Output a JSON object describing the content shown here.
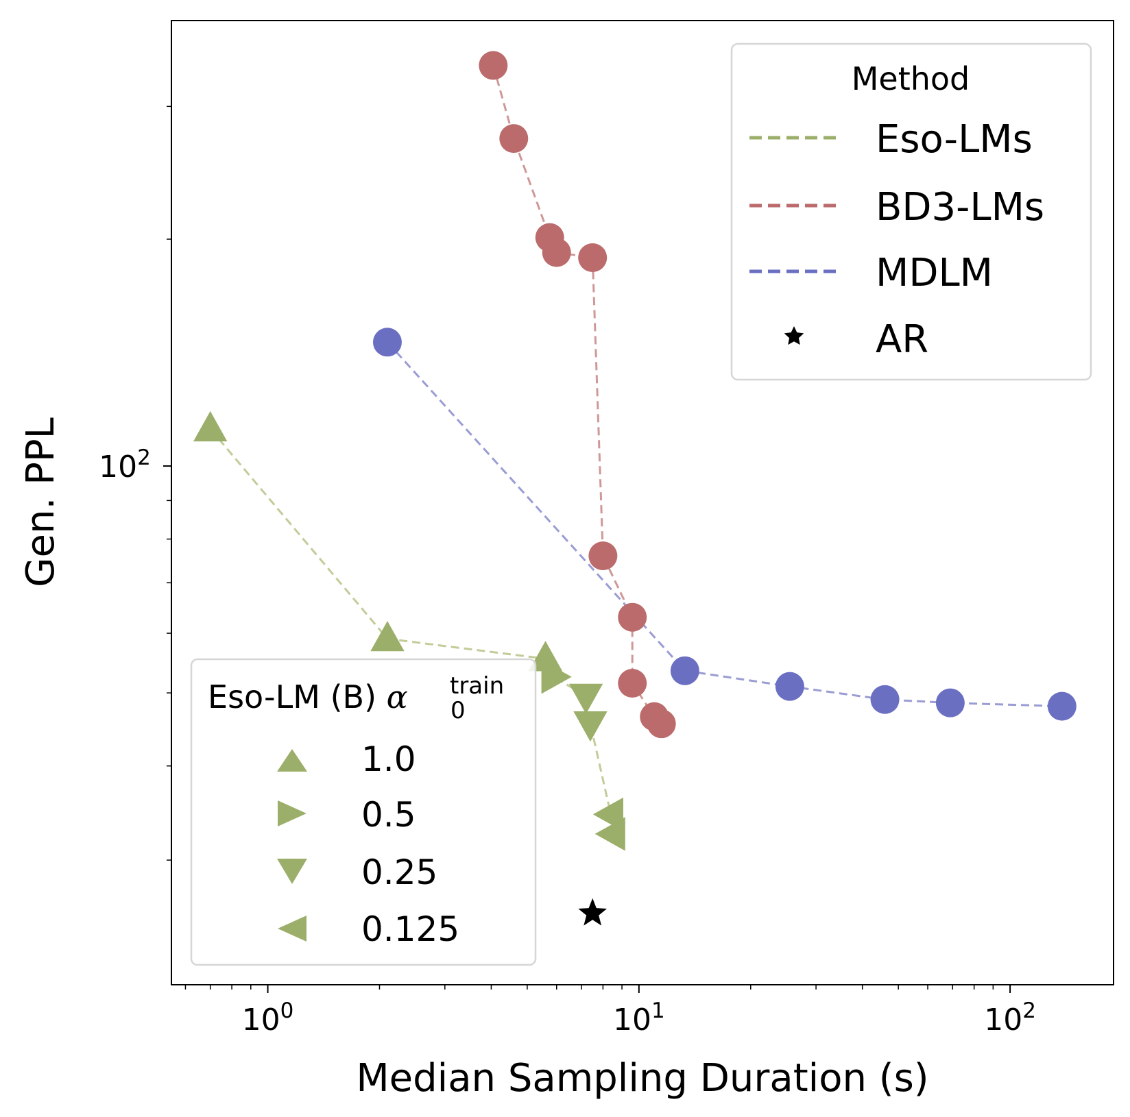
{
  "chart_data": {
    "type": "scatter",
    "xscale": "log",
    "yscale": "log",
    "xlabel": "Median Sampling Duration (s)",
    "ylabel": "Gen. PPL",
    "xlim": [
      0.55,
      190
    ],
    "ylim": [
      20.5,
      390
    ],
    "x_ticks": [
      {
        "value": 1,
        "base": "10",
        "exp": "0"
      },
      {
        "value": 10,
        "base": "10",
        "exp": "1"
      },
      {
        "value": 100,
        "base": "10",
        "exp": "2"
      }
    ],
    "y_ticks": [
      {
        "value": 100,
        "base": "10",
        "exp": "2"
      }
    ],
    "colors": {
      "eso": "#9caf6a",
      "bd3": "#bb6b6b",
      "mdlm": "#6b6fc2",
      "ar": "#000000"
    },
    "series": [
      {
        "name": "Eso-LMs",
        "key": "eso",
        "line_color": "#c2cc98",
        "marker_color": "#9caf6a",
        "points": [
          {
            "x": 0.7,
            "y": 112,
            "marker": "triangle-up"
          },
          {
            "x": 2.1,
            "y": 59,
            "marker": "triangle-up"
          },
          {
            "x": 5.6,
            "y": 55.5,
            "marker": "triangle-up"
          },
          {
            "x": 5.9,
            "y": 52.5,
            "marker": "triangle-right"
          },
          {
            "x": 7.2,
            "y": 49.5,
            "marker": "triangle-down"
          },
          {
            "x": 7.4,
            "y": 45.5,
            "marker": "triangle-down"
          },
          {
            "x": 8.4,
            "y": 34.5,
            "marker": "triangle-left"
          },
          {
            "x": 8.5,
            "y": 32.5,
            "marker": "triangle-left"
          }
        ]
      },
      {
        "name": "BD3-LMs",
        "key": "bd3",
        "line_color": "#cf9898",
        "marker_color": "#bb6b6b",
        "points": [
          {
            "x": 4.05,
            "y": 340
          },
          {
            "x": 4.6,
            "y": 272
          },
          {
            "x": 5.75,
            "y": 201
          },
          {
            "x": 6.0,
            "y": 192
          },
          {
            "x": 7.5,
            "y": 189
          },
          {
            "x": 8.0,
            "y": 76
          },
          {
            "x": 9.6,
            "y": 63
          },
          {
            "x": 9.6,
            "y": 51.5
          },
          {
            "x": 11.0,
            "y": 46.5
          },
          {
            "x": 11.5,
            "y": 45.5
          }
        ]
      },
      {
        "name": "MDLM",
        "key": "mdlm",
        "line_color": "#9a9cd4",
        "marker_color": "#6b6fc2",
        "points": [
          {
            "x": 2.1,
            "y": 146
          },
          {
            "x": 13.3,
            "y": 53.5
          },
          {
            "x": 25.5,
            "y": 51
          },
          {
            "x": 46.0,
            "y": 49
          },
          {
            "x": 69.0,
            "y": 48.5
          },
          {
            "x": 138.0,
            "y": 48
          }
        ]
      }
    ],
    "ar_point": {
      "x": 7.5,
      "y": 25.5
    },
    "legends": [
      {
        "title": "Method",
        "entries": [
          {
            "label": "Eso-LMs",
            "style": "dashed-line",
            "color": "#9caf6a"
          },
          {
            "label": "BD3-LMs",
            "style": "dashed-line",
            "color": "#bb6b6b"
          },
          {
            "label": "MDLM",
            "style": "dashed-line",
            "color": "#6b6fc2"
          },
          {
            "label": "AR",
            "style": "star",
            "color": "#000000"
          }
        ],
        "placement": "top-right"
      },
      {
        "title_text": "Eso-LM (B) ",
        "title_symbol": "α",
        "title_sub": "0",
        "title_sup": "train",
        "entries": [
          {
            "label": "1.0",
            "marker": "triangle-up"
          },
          {
            "label": "0.5",
            "marker": "triangle-right"
          },
          {
            "label": "0.25",
            "marker": "triangle-down"
          },
          {
            "label": "0.125",
            "marker": "triangle-left"
          }
        ],
        "placement": "bottom-left"
      }
    ]
  }
}
